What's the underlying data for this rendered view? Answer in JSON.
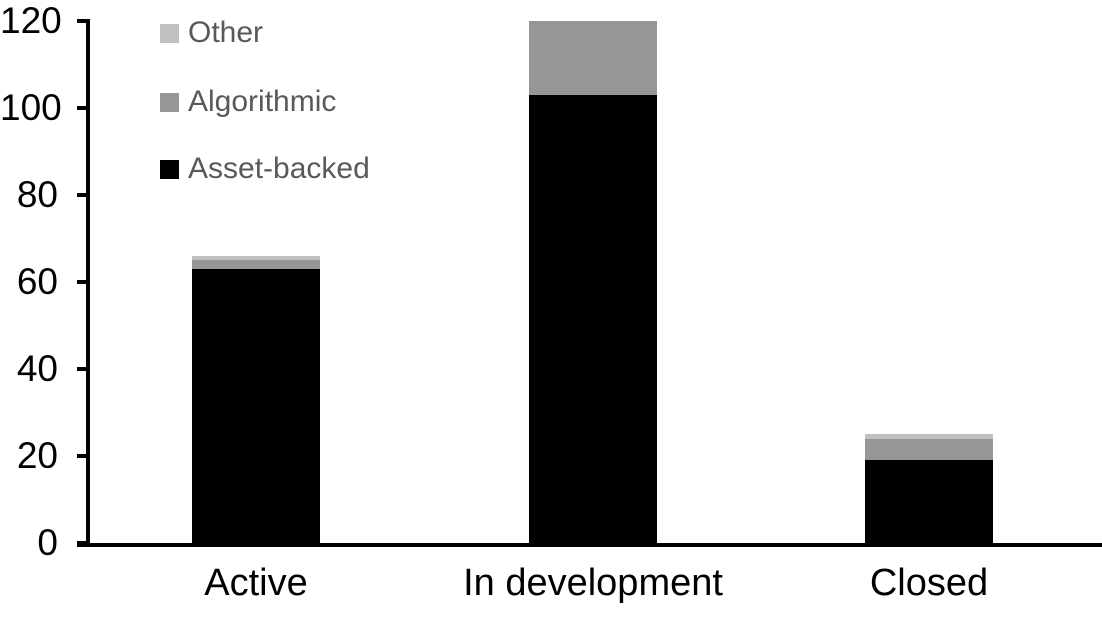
{
  "chart_data": {
    "type": "bar",
    "stacked": true,
    "title": "",
    "xlabel": "",
    "ylabel": "",
    "categories": [
      "Active",
      "In development",
      "Closed"
    ],
    "series": [
      {
        "name": "Asset-backed",
        "color": "#000000",
        "values": [
          63,
          103,
          19
        ]
      },
      {
        "name": "Algorithmic",
        "color": "#969696",
        "values": [
          2,
          17,
          5
        ]
      },
      {
        "name": "Other",
        "color": "#c0c0c0",
        "values": [
          1,
          0,
          1
        ]
      }
    ],
    "totals": [
      66,
      120,
      25
    ],
    "yticks": [
      0,
      20,
      40,
      60,
      80,
      100,
      120
    ],
    "ylim": [
      0,
      120
    ],
    "grid": false,
    "legend_position": "top-left",
    "legend_order": [
      "Other",
      "Algorithmic",
      "Asset-backed"
    ]
  },
  "colors": {
    "background": "#ffffff",
    "axis": "#000000",
    "tick_label_text": "#000000",
    "category_label_text": "#000000",
    "legend_text": "#595959"
  }
}
